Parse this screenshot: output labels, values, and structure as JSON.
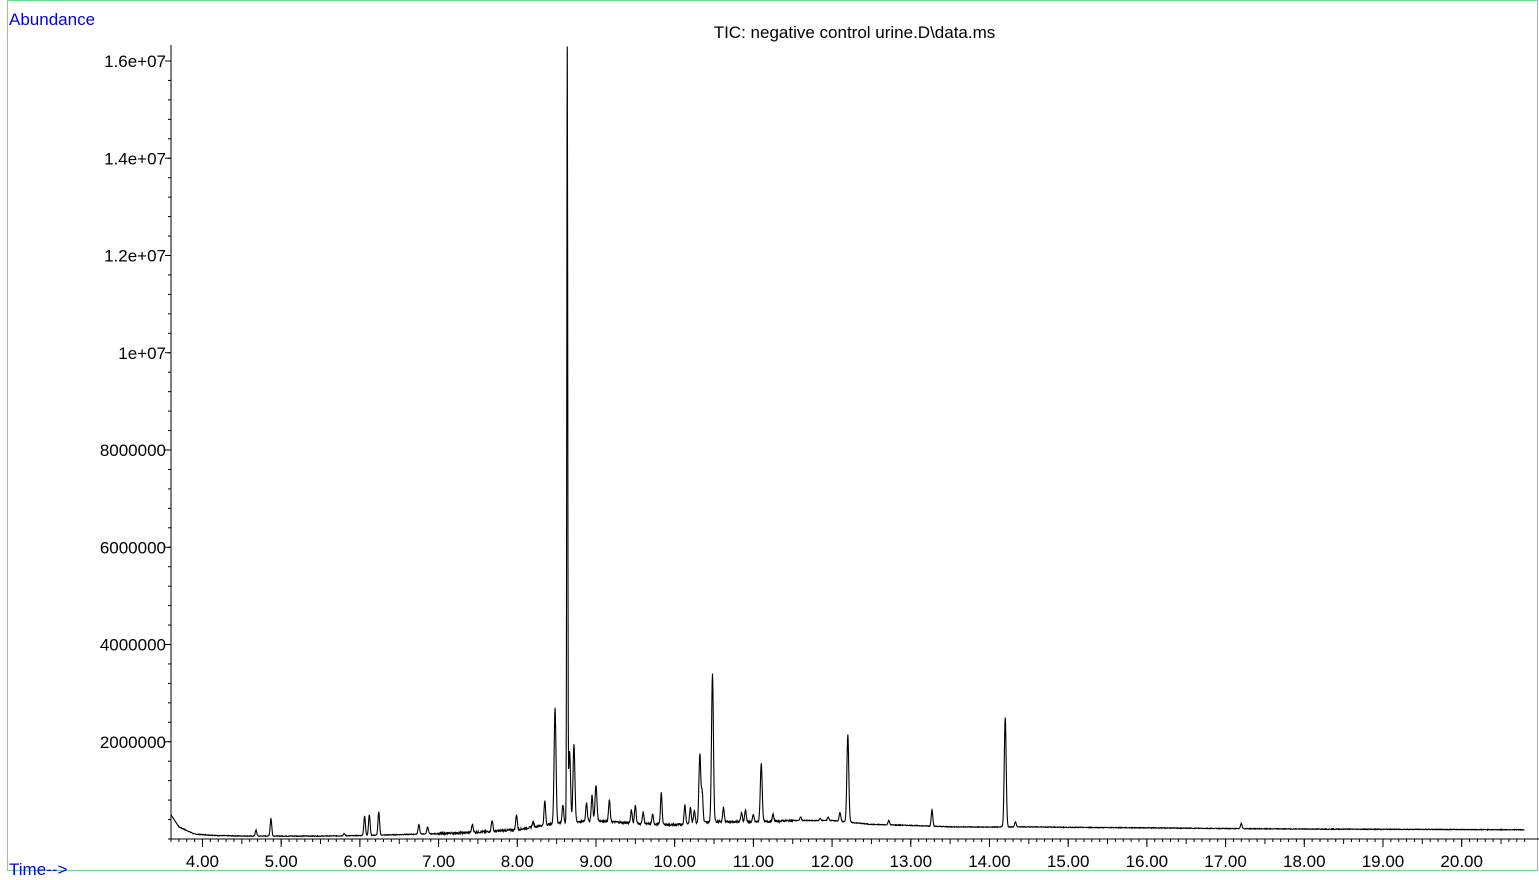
{
  "labels": {
    "y_axis": "Abundance",
    "x_axis": "Time-->"
  },
  "chart_data": {
    "type": "line",
    "title": "TIC: negative control urine.D\\data.ms",
    "xlabel": "Time-->",
    "ylabel": "Abundance",
    "xlim": [
      3.6,
      20.8
    ],
    "ylim": [
      0,
      16300000
    ],
    "grid": false,
    "legend": "none",
    "colors": {
      "trace": "#000000",
      "axis_text": "#0000ee",
      "frame": "#66dd88"
    },
    "x_ticks": [
      {
        "value": 4,
        "label": "4.00"
      },
      {
        "value": 5,
        "label": "5.00"
      },
      {
        "value": 6,
        "label": "6.00"
      },
      {
        "value": 7,
        "label": "7.00"
      },
      {
        "value": 8,
        "label": "8.00"
      },
      {
        "value": 9,
        "label": "9.00"
      },
      {
        "value": 10,
        "label": "10.00"
      },
      {
        "value": 11,
        "label": "11.00"
      },
      {
        "value": 12,
        "label": "12.00"
      },
      {
        "value": 13,
        "label": "13.00"
      },
      {
        "value": 14,
        "label": "14.00"
      },
      {
        "value": 15,
        "label": "15.00"
      },
      {
        "value": 16,
        "label": "16.00"
      },
      {
        "value": 17,
        "label": "17.00"
      },
      {
        "value": 18,
        "label": "18.00"
      },
      {
        "value": 19,
        "label": "19.00"
      },
      {
        "value": 20,
        "label": "20.00"
      }
    ],
    "y_ticks": [
      {
        "value": 2000000,
        "label": "2000000"
      },
      {
        "value": 4000000,
        "label": "4000000"
      },
      {
        "value": 6000000,
        "label": "6000000"
      },
      {
        "value": 8000000,
        "label": "8000000"
      },
      {
        "value": 10000000,
        "label": "1e+07"
      },
      {
        "value": 12000000,
        "label": "1.2e+07"
      },
      {
        "value": 14000000,
        "label": "1.4e+07"
      },
      {
        "value": 16000000,
        "label": "1.6e+07"
      }
    ],
    "baseline": [
      [
        3.6,
        500000
      ],
      [
        3.7,
        250000
      ],
      [
        3.9,
        100000
      ],
      [
        4.2,
        70000
      ],
      [
        4.6,
        60000
      ],
      [
        5.0,
        60000
      ],
      [
        5.5,
        60000
      ],
      [
        6.0,
        70000
      ],
      [
        6.5,
        90000
      ],
      [
        7.0,
        110000
      ],
      [
        7.5,
        140000
      ],
      [
        8.0,
        190000
      ],
      [
        8.5,
        330000
      ],
      [
        9.0,
        380000
      ],
      [
        9.5,
        320000
      ],
      [
        10.0,
        290000
      ],
      [
        10.5,
        360000
      ],
      [
        11.0,
        350000
      ],
      [
        11.5,
        380000
      ],
      [
        12.0,
        380000
      ],
      [
        12.5,
        300000
      ],
      [
        13.0,
        280000
      ],
      [
        13.5,
        250000
      ],
      [
        14.0,
        245000
      ],
      [
        14.5,
        250000
      ],
      [
        15.0,
        240000
      ],
      [
        16.0,
        230000
      ],
      [
        17.0,
        215000
      ],
      [
        18.0,
        205000
      ],
      [
        19.0,
        200000
      ],
      [
        20.0,
        195000
      ],
      [
        20.8,
        190000
      ]
    ],
    "series": [
      {
        "values": [
          [
            4.02,
            70000
          ],
          [
            4.68,
            180000
          ],
          [
            4.87,
            420000
          ],
          [
            5.8,
            110000
          ],
          [
            6.06,
            470000
          ],
          [
            6.12,
            500000
          ],
          [
            6.24,
            560000
          ],
          [
            6.75,
            300000
          ],
          [
            6.86,
            250000
          ],
          [
            7.43,
            300000
          ],
          [
            7.68,
            380000
          ],
          [
            7.99,
            500000
          ],
          [
            8.2,
            350000
          ],
          [
            8.35,
            780000
          ],
          [
            8.48,
            2700000
          ],
          [
            8.58,
            700000
          ],
          [
            8.635,
            16300000
          ],
          [
            8.665,
            1800000
          ],
          [
            8.72,
            1950000
          ],
          [
            8.88,
            750000
          ],
          [
            8.95,
            900000
          ],
          [
            9.0,
            1100000
          ],
          [
            9.17,
            800000
          ],
          [
            9.45,
            600000
          ],
          [
            9.5,
            700000
          ],
          [
            9.6,
            550000
          ],
          [
            9.72,
            500000
          ],
          [
            9.83,
            950000
          ],
          [
            10.13,
            700000
          ],
          [
            10.2,
            650000
          ],
          [
            10.25,
            600000
          ],
          [
            10.32,
            1750000
          ],
          [
            10.35,
            950000
          ],
          [
            10.48,
            3400000
          ],
          [
            10.62,
            650000
          ],
          [
            10.85,
            550000
          ],
          [
            10.9,
            600000
          ],
          [
            11.0,
            500000
          ],
          [
            11.1,
            1550000
          ],
          [
            11.25,
            500000
          ],
          [
            11.6,
            450000
          ],
          [
            11.85,
            420000
          ],
          [
            11.95,
            450000
          ],
          [
            12.1,
            550000
          ],
          [
            12.2,
            2150000
          ],
          [
            12.72,
            380000
          ],
          [
            13.27,
            600000
          ],
          [
            14.2,
            2500000
          ],
          [
            14.33,
            350000
          ],
          [
            17.2,
            320000
          ]
        ]
      }
    ]
  }
}
